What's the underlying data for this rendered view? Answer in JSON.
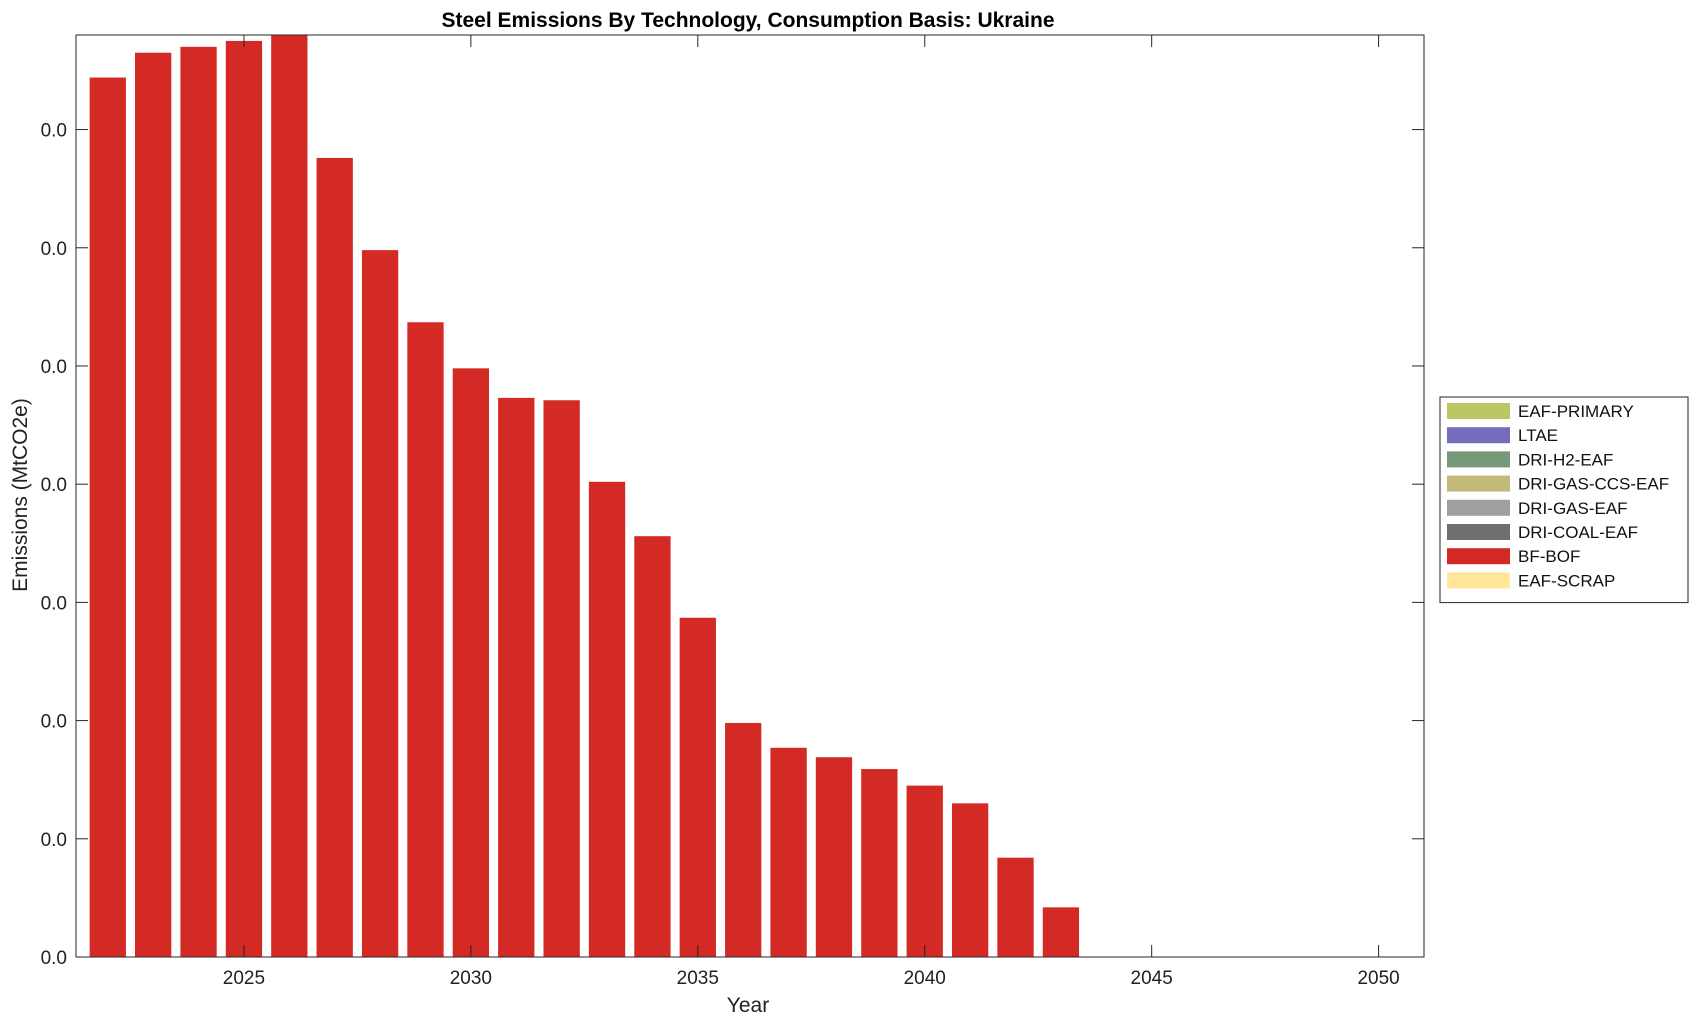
{
  "chart_data": {
    "type": "bar",
    "stacked": true,
    "title": "Steel Emissions By Technology, Consumption Basis: Ukraine",
    "xlabel": "Year",
    "ylabel": "Emissions (MtCO2e)",
    "xlim": [
      2021.3,
      2051.0
    ],
    "ylim": [
      0,
      39
    ],
    "xticks": [
      2025,
      2030,
      2035,
      2040,
      2045,
      2050
    ],
    "yticks": [
      {
        "value": 0,
        "label": "0.0"
      },
      {
        "value": 5,
        "label": "0.0"
      },
      {
        "value": 10,
        "label": "0.0"
      },
      {
        "value": 15,
        "label": "0.0"
      },
      {
        "value": 20,
        "label": "0.0"
      },
      {
        "value": 25,
        "label": "0.0"
      },
      {
        "value": 30,
        "label": "0.0"
      },
      {
        "value": 35,
        "label": "0.0"
      }
    ],
    "grid": false,
    "legend_position": "right",
    "categories": [
      2022,
      2023,
      2024,
      2025,
      2026,
      2027,
      2028,
      2029,
      2030,
      2031,
      2032,
      2033,
      2034,
      2035,
      2036,
      2037,
      2038,
      2039,
      2040,
      2041,
      2042,
      2043
    ],
    "series": [
      {
        "name": "EAF-SCRAP",
        "color": "#FFE699",
        "values": [
          0,
          0,
          0,
          0,
          0,
          0,
          0,
          0,
          0,
          0,
          0,
          0,
          0,
          0,
          0,
          0,
          0,
          0,
          0,
          0,
          0,
          0
        ]
      },
      {
        "name": "BF-BOF",
        "color": "#D42A26",
        "values": [
          37.2,
          38.25,
          38.5,
          38.75,
          39.0,
          33.8,
          29.9,
          26.85,
          24.9,
          23.65,
          23.55,
          20.1,
          17.8,
          14.35,
          9.9,
          8.85,
          8.45,
          7.95,
          7.25,
          6.5,
          4.2,
          2.1
        ]
      },
      {
        "name": "DRI-COAL-EAF",
        "color": "#6E6E6E",
        "values": [
          0,
          0,
          0,
          0,
          0,
          0,
          0,
          0,
          0,
          0,
          0,
          0,
          0,
          0,
          0,
          0,
          0,
          0,
          0,
          0,
          0,
          0
        ]
      },
      {
        "name": "DRI-GAS-EAF",
        "color": "#A0A0A0",
        "values": [
          0,
          0,
          0,
          0,
          0,
          0,
          0,
          0,
          0,
          0,
          0,
          0,
          0,
          0,
          0,
          0,
          0,
          0,
          0,
          0,
          0,
          0
        ]
      },
      {
        "name": "DRI-GAS-CCS-EAF",
        "color": "#C2B97A",
        "values": [
          0,
          0,
          0,
          0,
          0,
          0,
          0,
          0,
          0,
          0,
          0,
          0,
          0,
          0,
          0,
          0,
          0,
          0,
          0,
          0,
          0,
          0
        ]
      },
      {
        "name": "DRI-H2-EAF",
        "color": "#76997A",
        "values": [
          0,
          0,
          0,
          0,
          0,
          0,
          0,
          0,
          0,
          0,
          0,
          0,
          0,
          0,
          0,
          0,
          0,
          0,
          0,
          0,
          0,
          0
        ]
      },
      {
        "name": "LTAE",
        "color": "#736DBC",
        "values": [
          0,
          0,
          0,
          0,
          0,
          0,
          0,
          0,
          0,
          0,
          0,
          0,
          0,
          0,
          0,
          0,
          0,
          0,
          0,
          0,
          0,
          0
        ]
      },
      {
        "name": "EAF-PRIMARY",
        "color": "#BCC665",
        "values": [
          0,
          0,
          0,
          0,
          0,
          0,
          0,
          0,
          0,
          0,
          0,
          0,
          0,
          0,
          0,
          0,
          0,
          0,
          0,
          0,
          0,
          0
        ]
      }
    ],
    "legend_order": [
      "EAF-PRIMARY",
      "LTAE",
      "DRI-H2-EAF",
      "DRI-GAS-CCS-EAF",
      "DRI-GAS-EAF",
      "DRI-COAL-EAF",
      "BF-BOF",
      "EAF-SCRAP"
    ]
  }
}
